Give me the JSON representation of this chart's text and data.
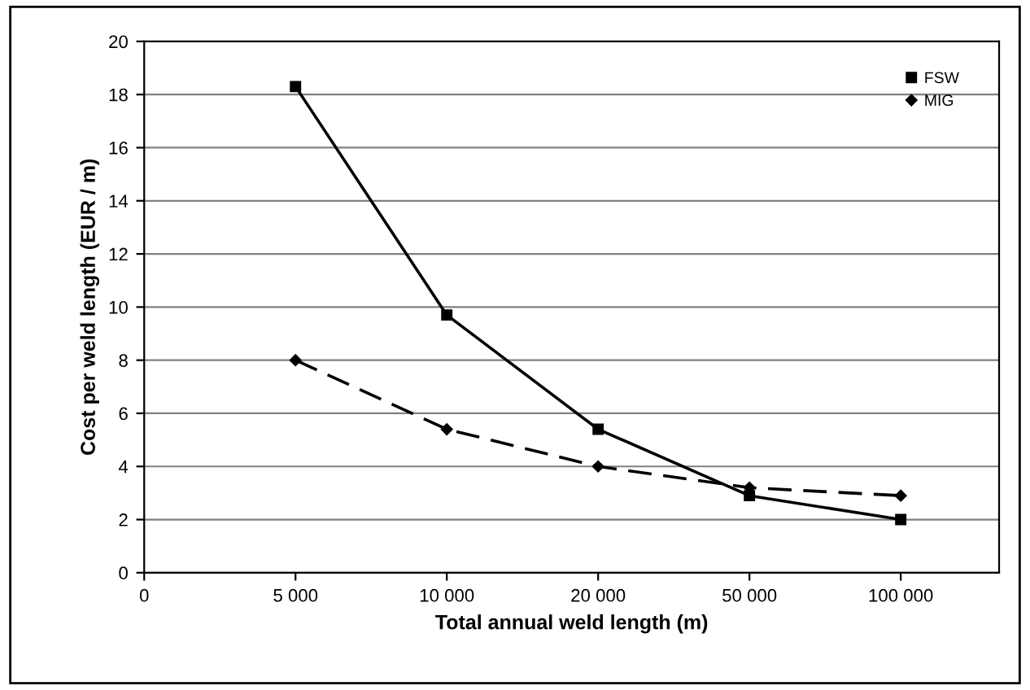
{
  "chart_data": {
    "type": "line",
    "xlabel": "Total annual weld length (m)",
    "ylabel": "Cost per weld length (EUR / m)",
    "categories": [
      "0",
      "5 000",
      "10 000",
      "20 000",
      "50 000",
      "100 000"
    ],
    "series": [
      {
        "name": "FSW",
        "color": "#000000",
        "marker": "square",
        "line_style": "solid",
        "values": [
          null,
          18.3,
          9.7,
          5.4,
          2.9,
          2.0
        ]
      },
      {
        "name": "MIG",
        "color": "#000000",
        "marker": "diamond",
        "line_style": "dashed",
        "values": [
          null,
          8.0,
          5.4,
          4.0,
          3.2,
          2.9
        ]
      }
    ],
    "ylim": [
      0,
      20
    ],
    "yticks": [
      0,
      2,
      4,
      6,
      8,
      10,
      12,
      14,
      16,
      18,
      20
    ],
    "grid": "y",
    "legend": "top right"
  }
}
